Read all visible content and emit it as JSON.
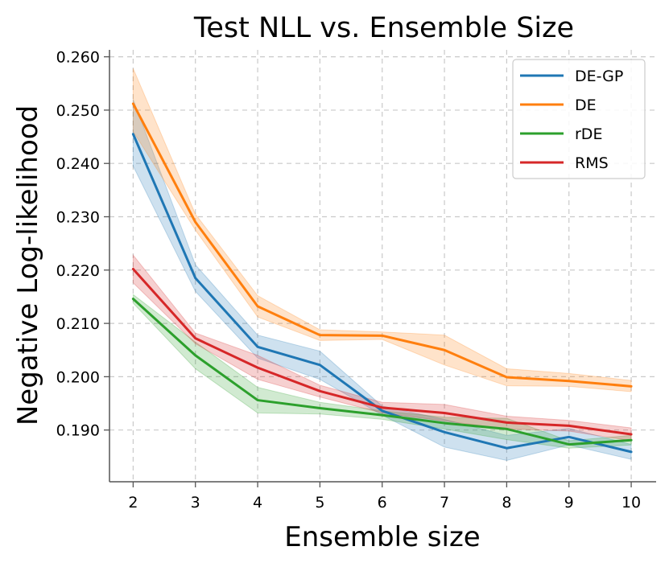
{
  "chart_data": {
    "type": "line",
    "title": "Test NLL vs. Ensemble Size",
    "xlabel": "Ensemble size",
    "ylabel": "Negative Log-likelihood",
    "x": [
      2,
      3,
      4,
      5,
      6,
      7,
      8,
      9,
      10
    ],
    "xlim": [
      1.62,
      10.4
    ],
    "ylim": [
      0.1803,
      0.2613
    ],
    "xticks": [
      2,
      3,
      4,
      5,
      6,
      7,
      8,
      9,
      10
    ],
    "yticks": [
      0.19,
      0.2,
      0.21,
      0.22,
      0.23,
      0.24,
      0.25,
      0.26
    ],
    "ytick_labels": [
      "0.190",
      "0.200",
      "0.210",
      "0.220",
      "0.230",
      "0.240",
      "0.250",
      "0.260"
    ],
    "grid": true,
    "legend_position": "top-right",
    "series": [
      {
        "name": "DE-GP",
        "color": "#1f77b4",
        "values": [
          0.2455,
          0.2185,
          0.2056,
          0.2022,
          0.1936,
          0.1896,
          0.1866,
          0.1887,
          0.1859
        ],
        "lower": [
          0.2395,
          0.216,
          0.2035,
          0.1995,
          0.1928,
          0.1868,
          0.1843,
          0.1872,
          0.1845
        ],
        "upper": [
          0.252,
          0.221,
          0.2078,
          0.2048,
          0.1945,
          0.192,
          0.189,
          0.1903,
          0.1873
        ]
      },
      {
        "name": "DE",
        "color": "#ff7f0e",
        "values": [
          0.2512,
          0.229,
          0.2132,
          0.2078,
          0.2077,
          0.205,
          0.1999,
          0.1992,
          0.1982
        ],
        "lower": [
          0.246,
          0.2275,
          0.2112,
          0.2068,
          0.207,
          0.2022,
          0.1983,
          0.1982,
          0.1972
        ],
        "upper": [
          0.2578,
          0.2305,
          0.2152,
          0.2088,
          0.2084,
          0.2078,
          0.2015,
          0.2006,
          0.1993
        ]
      },
      {
        "name": "rDE",
        "color": "#2ca02c",
        "values": [
          0.2146,
          0.204,
          0.1956,
          0.1941,
          0.1928,
          0.1913,
          0.1902,
          0.1873,
          0.1881
        ],
        "lower": [
          0.2138,
          0.2015,
          0.1932,
          0.193,
          0.192,
          0.1902,
          0.1882,
          0.1866,
          0.1872
        ],
        "upper": [
          0.2154,
          0.2065,
          0.198,
          0.1952,
          0.1936,
          0.1924,
          0.1922,
          0.188,
          0.189
        ]
      },
      {
        "name": "RMS",
        "color": "#d62728",
        "values": [
          0.2202,
          0.2072,
          0.2017,
          0.1973,
          0.1942,
          0.1932,
          0.1914,
          0.1908,
          0.1892
        ],
        "lower": [
          0.2176,
          0.2062,
          0.1995,
          0.1962,
          0.1932,
          0.1917,
          0.1902,
          0.1898,
          0.188
        ],
        "upper": [
          0.2228,
          0.2082,
          0.204,
          0.1984,
          0.1952,
          0.1948,
          0.1926,
          0.1918,
          0.1904
        ]
      }
    ]
  }
}
